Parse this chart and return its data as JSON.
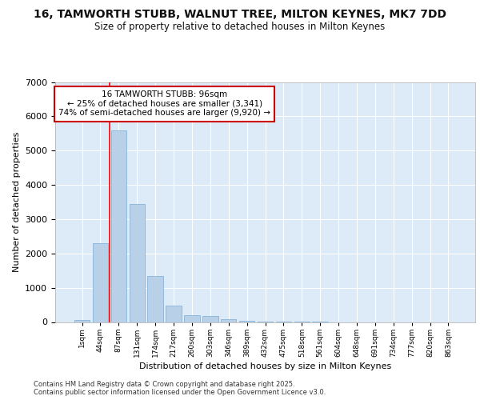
{
  "title_line1": "16, TAMWORTH STUBB, WALNUT TREE, MILTON KEYNES, MK7 7DD",
  "title_line2": "Size of property relative to detached houses in Milton Keynes",
  "xlabel": "Distribution of detached houses by size in Milton Keynes",
  "ylabel": "Number of detached properties",
  "categories": [
    "1sqm",
    "44sqm",
    "87sqm",
    "131sqm",
    "174sqm",
    "217sqm",
    "260sqm",
    "303sqm",
    "346sqm",
    "389sqm",
    "432sqm",
    "475sqm",
    "518sqm",
    "561sqm",
    "604sqm",
    "648sqm",
    "691sqm",
    "734sqm",
    "777sqm",
    "820sqm",
    "863sqm"
  ],
  "values": [
    70,
    2300,
    5600,
    3450,
    1350,
    480,
    200,
    170,
    80,
    40,
    15,
    5,
    2,
    1,
    0,
    0,
    0,
    0,
    0,
    0,
    0
  ],
  "bar_color": "#b8d0e8",
  "bar_edge_color": "#7aacd4",
  "background_color": "#ddeaf7",
  "grid_color": "#ffffff",
  "red_line_index": 1.5,
  "annotation_title": "16 TAMWORTH STUBB: 96sqm",
  "annotation_line1": "← 25% of detached houses are smaller (3,341)",
  "annotation_line2": "74% of semi-detached houses are larger (9,920) →",
  "annotation_box_edge": "#cc0000",
  "footer_line1": "Contains HM Land Registry data © Crown copyright and database right 2025.",
  "footer_line2": "Contains public sector information licensed under the Open Government Licence v3.0.",
  "ylim": [
    0,
    7000
  ],
  "yticks": [
    0,
    1000,
    2000,
    3000,
    4000,
    5000,
    6000,
    7000
  ]
}
